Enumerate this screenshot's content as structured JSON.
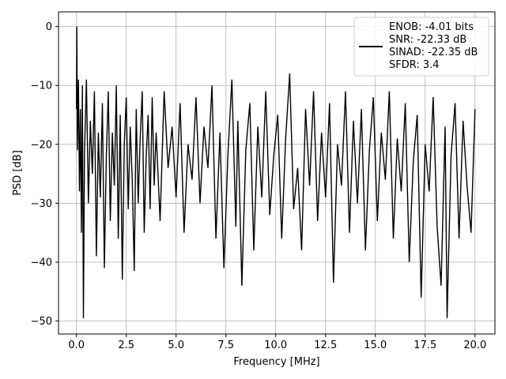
{
  "chart_data": {
    "type": "line",
    "xlabel": "Frequency [MHz]",
    "ylabel": "PSD [dB]",
    "xlim": [
      -0.9,
      21.0
    ],
    "ylim": [
      -52.2,
      2.5
    ],
    "xticks": [
      0.0,
      2.5,
      5.0,
      7.5,
      10.0,
      12.5,
      15.0,
      17.5,
      20.0
    ],
    "xtick_labels": [
      "0.0",
      "2.5",
      "5.0",
      "7.5",
      "10.0",
      "12.5",
      "15.0",
      "17.5",
      "20.0"
    ],
    "yticks": [
      0,
      -10,
      -20,
      -30,
      -40,
      -50
    ],
    "ytick_labels": [
      "0",
      "−10",
      "−20",
      "−30",
      "−40",
      "−50"
    ],
    "grid": true,
    "legend": {
      "placement": "top-right",
      "entries": [
        "ENOB: -4.01 bits",
        "SNR: -22.33 dB",
        "SINAD: -22.35 dB",
        "SFDR: 3.4"
      ]
    },
    "series": [
      {
        "color": "#000000",
        "x": [
          0.0,
          0.02,
          0.05,
          0.1,
          0.15,
          0.2,
          0.25,
          0.3,
          0.35,
          0.4,
          0.5,
          0.6,
          0.7,
          0.8,
          0.9,
          1.0,
          1.1,
          1.2,
          1.3,
          1.4,
          1.5,
          1.6,
          1.7,
          1.8,
          1.9,
          2.0,
          2.1,
          2.2,
          2.3,
          2.4,
          2.5,
          2.6,
          2.7,
          2.8,
          2.9,
          3.0,
          3.1,
          3.2,
          3.3,
          3.4,
          3.5,
          3.6,
          3.7,
          3.8,
          3.9,
          4.0,
          4.2,
          4.4,
          4.6,
          4.8,
          5.0,
          5.2,
          5.4,
          5.6,
          5.8,
          6.0,
          6.2,
          6.4,
          6.6,
          6.8,
          7.0,
          7.2,
          7.4,
          7.6,
          7.8,
          8.0,
          8.1,
          8.3,
          8.5,
          8.7,
          8.9,
          9.1,
          9.3,
          9.5,
          9.7,
          9.9,
          10.1,
          10.3,
          10.5,
          10.7,
          10.9,
          11.1,
          11.3,
          11.5,
          11.7,
          11.9,
          12.1,
          12.3,
          12.5,
          12.7,
          12.9,
          13.1,
          13.3,
          13.5,
          13.7,
          13.9,
          14.1,
          14.3,
          14.5,
          14.7,
          14.9,
          15.1,
          15.3,
          15.5,
          15.7,
          15.9,
          16.1,
          16.3,
          16.5,
          16.7,
          16.9,
          17.1,
          17.3,
          17.5,
          17.7,
          17.9,
          18.1,
          18.3,
          18.5,
          18.6,
          18.8,
          19.0,
          19.2,
          19.4,
          19.6,
          19.8,
          20.0
        ],
        "y": [
          -14,
          0,
          -21,
          -9,
          -28,
          -14,
          -35,
          -10,
          -49.5,
          -22,
          -9,
          -30,
          -16,
          -25,
          -11,
          -39,
          -18,
          -29,
          -13,
          -41,
          -22,
          -11,
          -33,
          -18,
          -27,
          -10,
          -36,
          -15,
          -43,
          -20,
          -12,
          -31,
          -17,
          -26,
          -41.5,
          -14,
          -30,
          -19,
          -11,
          -35,
          -22,
          -15,
          -31,
          -12,
          -27,
          -18,
          -33,
          -11,
          -24,
          -17,
          -29,
          -13,
          -35,
          -20,
          -26,
          -12,
          -30,
          -17,
          -24,
          -10,
          -36,
          -18,
          -41,
          -22,
          -9,
          -34,
          -16,
          -44,
          -21,
          -13,
          -38,
          -17,
          -29,
          -11,
          -32,
          -22,
          -15,
          -36,
          -19,
          -8,
          -31,
          -24,
          -38,
          -14,
          -27,
          -11,
          -33,
          -18,
          -29,
          -13,
          -43.5,
          -20,
          -27,
          -11,
          -35,
          -16,
          -30,
          -14,
          -38,
          -21,
          -12,
          -33,
          -18,
          -26,
          -11,
          -36,
          -19,
          -28,
          -13,
          -40,
          -23,
          -15,
          -46,
          -20,
          -28,
          -12,
          -34,
          -44,
          -17,
          -49.5,
          -22,
          -13,
          -36,
          -16,
          -27,
          -35,
          -14
        ]
      }
    ]
  }
}
